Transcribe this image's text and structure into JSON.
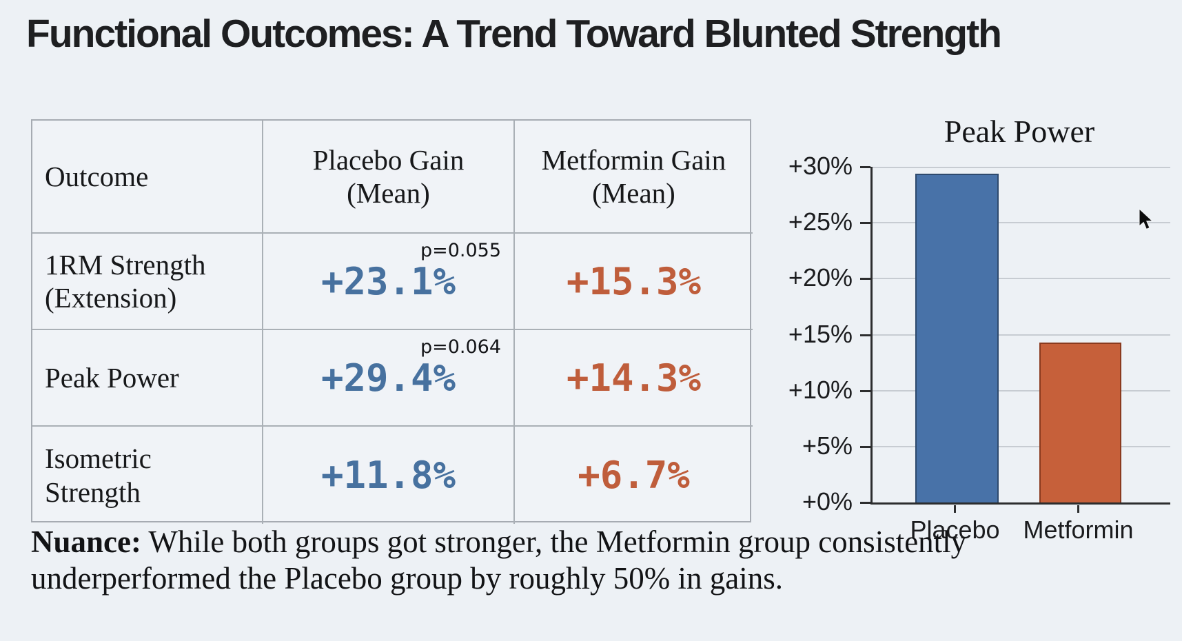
{
  "title": "Functional Outcomes: A Trend Toward Blunted Strength",
  "table": {
    "headers": [
      {
        "line1": "Outcome",
        "line2": ""
      },
      {
        "line1": "Placebo Gain",
        "line2": "(Mean)"
      },
      {
        "line1": "Metformin Gain",
        "line2": "(Mean)"
      }
    ],
    "rows": [
      {
        "outcome_line1": "1RM Strength",
        "outcome_line2": "(Extension)",
        "placebo_p": "p=0.055",
        "placebo": "+23.1%",
        "metformin": "+15.3%"
      },
      {
        "outcome_line1": "Peak Power",
        "outcome_line2": "",
        "placebo_p": "p=0.064",
        "placebo": "+29.4%",
        "metformin": "+14.3%"
      },
      {
        "outcome_line1": "Isometric",
        "outcome_line2": "Strength",
        "placebo_p": "",
        "placebo": "+11.8%",
        "metformin": "+6.7%"
      }
    ]
  },
  "chart_data": {
    "type": "bar",
    "title": "Peak Power",
    "categories": [
      "Placebo",
      "Metformin"
    ],
    "values": [
      29.4,
      14.3
    ],
    "ylim": [
      0,
      30
    ],
    "ytick_step": 5,
    "ytick_labels": [
      "+0%",
      "+5%",
      "+10%",
      "+15%",
      "+20%",
      "+25%",
      "+30%"
    ],
    "grid": true,
    "legend": "none",
    "bar_colors": [
      {
        "fill": "#4872a8",
        "border": "#2e4a6d"
      },
      {
        "fill": "#c6603a",
        "border": "#8a3a1e"
      }
    ]
  },
  "nuance": {
    "label": "Nuance:",
    "text": " While both groups got stronger, the Metformin group consistently underperformed the Placebo group by roughly 50% in gains."
  },
  "colors": {
    "background": "#edf1f5",
    "placebo_text": "#47719f",
    "metformin_text": "#bf5d3b"
  }
}
